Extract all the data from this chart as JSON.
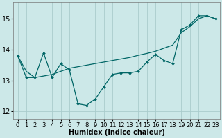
{
  "xlabel": "Humidex (Indice chaleur)",
  "background_color": "#cce8e8",
  "grid_color": "#aacccc",
  "line_color": "#006666",
  "marker_color": "#006666",
  "xlim": [
    -0.5,
    23.5
  ],
  "ylim": [
    11.75,
    15.55
  ],
  "yticks": [
    12,
    13,
    14,
    15
  ],
  "xticks": [
    0,
    1,
    2,
    3,
    4,
    5,
    6,
    7,
    8,
    9,
    10,
    11,
    12,
    13,
    14,
    15,
    16,
    17,
    18,
    19,
    20,
    21,
    22,
    23
  ],
  "line1_x": [
    0,
    1,
    2,
    3,
    4,
    5,
    6,
    7,
    8,
    9,
    10,
    11,
    12,
    13,
    14,
    15,
    16,
    17,
    18,
    19,
    20,
    21,
    22,
    23
  ],
  "line1_y": [
    13.8,
    13.1,
    13.1,
    13.9,
    13.1,
    13.55,
    13.35,
    12.25,
    12.2,
    12.4,
    12.8,
    13.2,
    13.25,
    13.25,
    13.3,
    13.6,
    13.85,
    13.65,
    13.55,
    14.65,
    14.8,
    15.1,
    15.1,
    15.0
  ],
  "line2_x": [
    0,
    1,
    2,
    3,
    4,
    5,
    6,
    7,
    8,
    9,
    10,
    11,
    12,
    13,
    14,
    15,
    16,
    17,
    18,
    19,
    20,
    21,
    22,
    23
  ],
  "line2_y": [
    13.8,
    13.3,
    13.1,
    13.15,
    13.2,
    13.3,
    13.4,
    13.45,
    13.5,
    13.55,
    13.6,
    13.65,
    13.7,
    13.75,
    13.82,
    13.88,
    13.95,
    14.05,
    14.15,
    14.55,
    14.75,
    15.0,
    15.1,
    15.0
  ],
  "xlabel_fontsize": 7,
  "tick_fontsize": 6
}
